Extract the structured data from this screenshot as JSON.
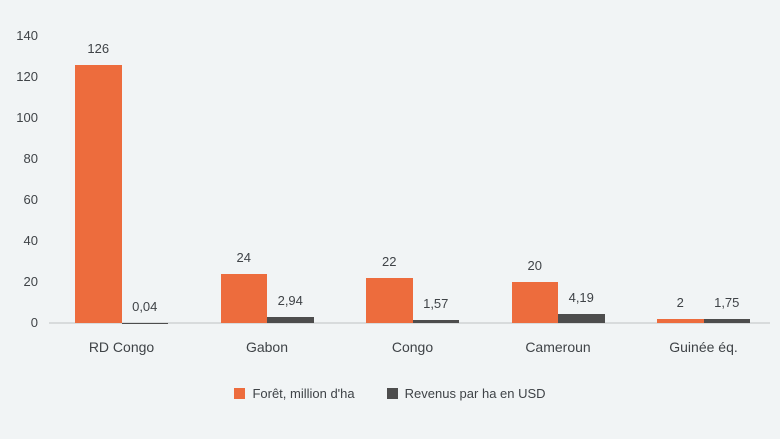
{
  "chart_data": {
    "type": "bar",
    "categories": [
      "RD Congo",
      "Gabon",
      "Congo",
      "Cameroun",
      "Guinée éq."
    ],
    "series": [
      {
        "name": "Forêt, million d'ha",
        "color": "#ED6C3D",
        "values": [
          126,
          24,
          22,
          20,
          2
        ],
        "labels": [
          "126",
          "24",
          "22",
          "20",
          "2"
        ]
      },
      {
        "name": "Revenus par ha en USD",
        "color": "#4D4D4D",
        "values": [
          0.04,
          2.94,
          1.57,
          4.19,
          1.75
        ],
        "labels": [
          "0,04",
          "2,94",
          "1,57",
          "4,19",
          "1,75"
        ]
      }
    ],
    "title": "",
    "xlabel": "",
    "ylabel": "",
    "ylim": [
      0,
      140
    ],
    "yticks": [
      0,
      20,
      40,
      60,
      80,
      100,
      120,
      140
    ],
    "grid": false,
    "legend_position": "bottom"
  },
  "colors": {
    "background": "#F1F4F5",
    "axis_line": "#D8DBDC",
    "text": "#3F4347",
    "series_1": "#ED6C3D",
    "series_2": "#4D4D4D"
  }
}
